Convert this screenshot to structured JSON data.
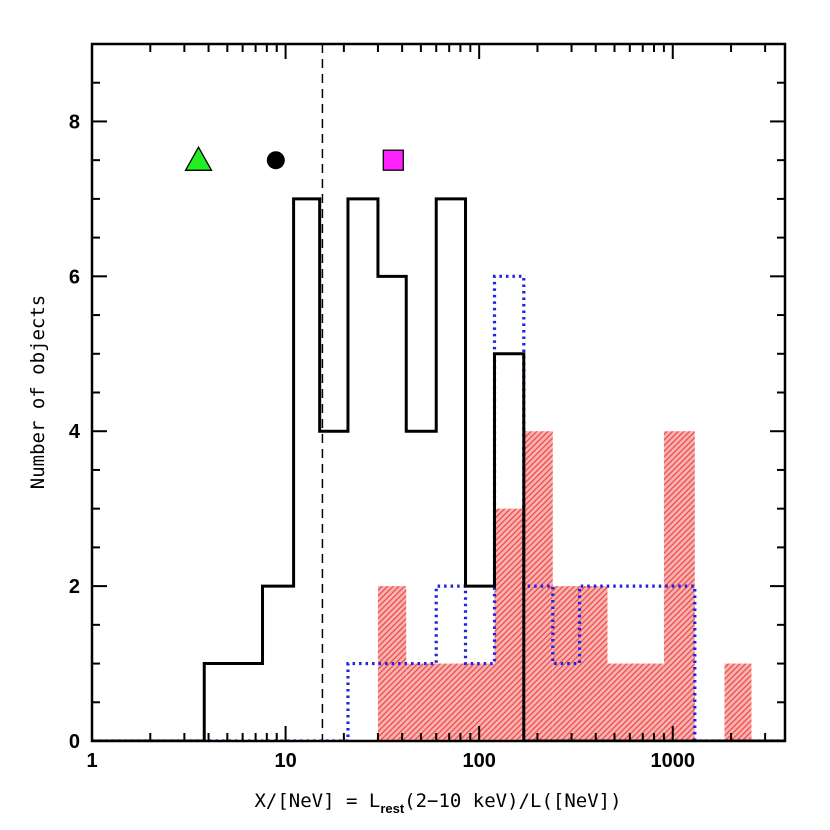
{
  "chart_data": {
    "type": "histogram",
    "xscale": "log",
    "xlim": [
      1,
      3800
    ],
    "ylim": [
      0,
      9
    ],
    "grid": false,
    "xlabel_parts": [
      "X/[NeV] = L",
      "rest",
      "(2−10 keV)/L([NeV])"
    ],
    "ylabel": "Number of objects",
    "x_ticks": [
      1,
      10,
      100,
      1000
    ],
    "x_tick_labels": [
      "1",
      "10",
      "100",
      "1000"
    ],
    "y_ticks": [
      0,
      2,
      4,
      6,
      8
    ],
    "y_tick_labels": [
      "0",
      "2",
      "4",
      "6",
      "8"
    ],
    "vertical_reference_line": {
      "x": 15.5,
      "style": "dashed"
    },
    "markers": [
      {
        "shape": "triangle",
        "x": 3.55,
        "y": 7.5,
        "color": "#22ee22"
      },
      {
        "shape": "circle",
        "x": 8.9,
        "y": 7.5,
        "color": "#000000"
      },
      {
        "shape": "square",
        "x": 36,
        "y": 7.5,
        "color": "#ff22ff"
      }
    ],
    "series": [
      {
        "style": "black-solid-step",
        "color": "#000000",
        "bin_edges": [
          3.8,
          7.6,
          11,
          15,
          21,
          30,
          42,
          60,
          85,
          120,
          170
        ],
        "counts": [
          1,
          2,
          7,
          4,
          7,
          6,
          4,
          7,
          2,
          5
        ]
      },
      {
        "style": "blue-dotted-step",
        "color": "#2222dd",
        "bin_edges": [
          21,
          60,
          85,
          120,
          170,
          240,
          330,
          1300
        ],
        "counts": [
          1,
          2,
          1,
          6,
          2,
          1,
          2
        ]
      },
      {
        "style": "red-hatched-fill",
        "color": "#ee4444",
        "bins": [
          {
            "x0": 30,
            "x1": 42,
            "count": 2
          },
          {
            "x0": 42,
            "x1": 120,
            "count": 1
          },
          {
            "x0": 120,
            "x1": 170,
            "count": 3
          },
          {
            "x0": 170,
            "x1": 240,
            "count": 4
          },
          {
            "x0": 240,
            "x1": 460,
            "count": 2
          },
          {
            "x0": 460,
            "x1": 900,
            "count": 1
          },
          {
            "x0": 900,
            "x1": 1300,
            "count": 4
          },
          {
            "x0": 1850,
            "x1": 2550,
            "count": 1
          }
        ]
      }
    ]
  }
}
